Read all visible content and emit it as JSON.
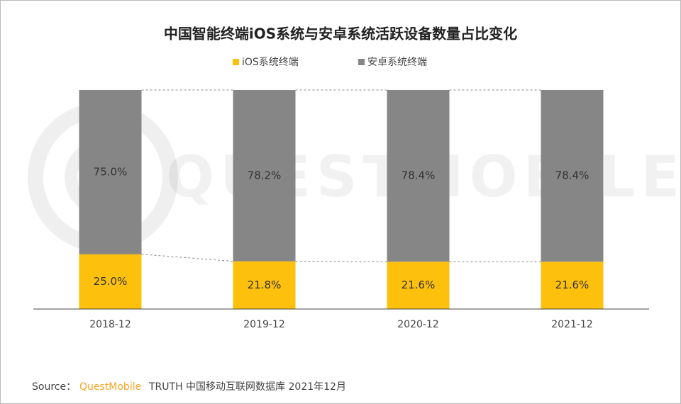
{
  "chart_data": {
    "type": "stacked_bar",
    "title": "中国智能终端iOS系统与安卓系统活跃设备数量占比变化",
    "watermark": "QUESTMOBILE",
    "categories": [
      "2018-12",
      "2019-12",
      "2020-12",
      "2021-12"
    ],
    "series": [
      {
        "name": "iOS系统终端",
        "color": "#fdc00c",
        "values": [
          25.0,
          21.8,
          21.6,
          21.6
        ],
        "value_labels": [
          "25.0%",
          "21.8%",
          "21.6%",
          "21.6%"
        ]
      },
      {
        "name": "安卓系统终端",
        "color": "#868686",
        "values": [
          75.0,
          78.2,
          78.4,
          78.4
        ],
        "value_labels": [
          "75.0%",
          "78.2%",
          "78.4%",
          "78.4%"
        ]
      }
    ],
    "ylim": [
      0,
      100
    ],
    "legend": "top",
    "source_label": "Source：",
    "source_brand": "QuestMobile",
    "source_text": "TRUTH 中国移动互联网数据库 2021年12月"
  }
}
